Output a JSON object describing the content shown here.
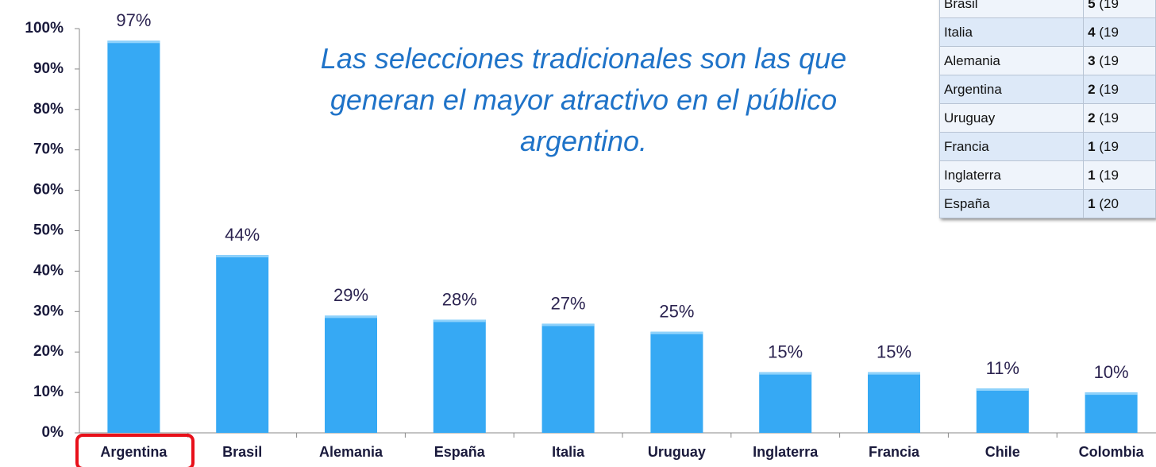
{
  "chart_data": {
    "type": "bar",
    "annotation": "Las selecciones tradicionales son las que generan el mayor atractivo en el público argentino.",
    "categories": [
      "Argentina",
      "Brasil",
      "Alemania",
      "España",
      "Italia",
      "Uruguay",
      "Inglaterra",
      "Francia",
      "Chile",
      "Colombia"
    ],
    "values": [
      97,
      44,
      29,
      28,
      27,
      25,
      15,
      15,
      11,
      10
    ],
    "value_labels": [
      "97%",
      "44%",
      "29%",
      "28%",
      "27%",
      "25%",
      "15%",
      "15%",
      "11%",
      "10%"
    ],
    "color": "#36a9f4",
    "highlight_color": "#e8101a",
    "ylim": [
      0,
      100
    ],
    "yticks": [
      {
        "value": 0,
        "label": "0%"
      },
      {
        "value": 10,
        "label": "10%"
      },
      {
        "value": 20,
        "label": "20%"
      },
      {
        "value": 30,
        "label": "30%"
      },
      {
        "value": 40,
        "label": "40%"
      },
      {
        "value": 50,
        "label": "50%"
      },
      {
        "value": 60,
        "label": "60%"
      },
      {
        "value": 70,
        "label": "70%"
      },
      {
        "value": 80,
        "label": "80%"
      },
      {
        "value": 90,
        "label": "90%"
      },
      {
        "value": 100,
        "label": "100%"
      }
    ],
    "grid": false
  },
  "table": {
    "rows": [
      [
        "Brasil",
        "5",
        "(19"
      ],
      [
        "Italia",
        "4",
        "(19"
      ],
      [
        "Alemania",
        "3",
        "(19"
      ],
      [
        "Argentina",
        "2",
        "(19"
      ],
      [
        "Uruguay",
        "2",
        "(19"
      ],
      [
        "Francia",
        "1",
        "(19"
      ],
      [
        "Inglaterra",
        "1",
        "(19"
      ],
      [
        "España",
        "1",
        "(20"
      ]
    ]
  }
}
